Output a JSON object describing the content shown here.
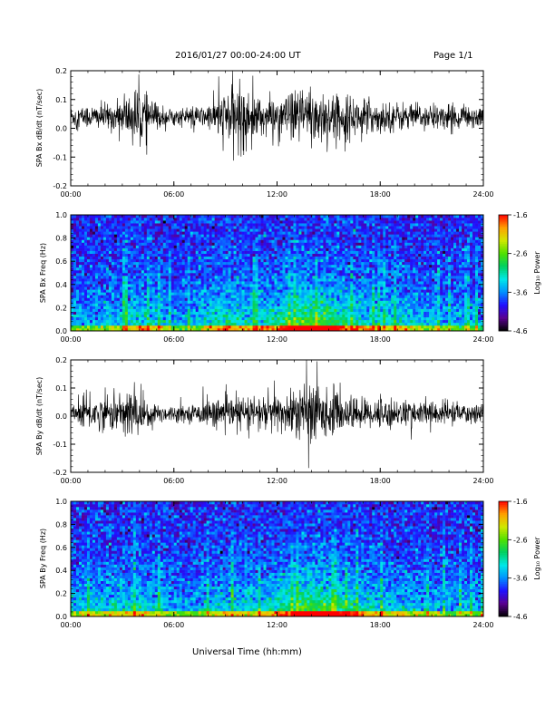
{
  "header": {
    "date_range": "2016/01/27  00:00-24:00 UT",
    "page": "Page 1/1"
  },
  "xlabel": "Universal Time (hh:mm)",
  "x_ticks": [
    "00:00",
    "06:00",
    "12:00",
    "18:00",
    "24:00"
  ],
  "colorbar": {
    "label": "Log₁₀ Power",
    "ticks": [
      "-1.6",
      "-2.6",
      "-3.6",
      "-4.6"
    ],
    "range": [
      -4.6,
      -1.6
    ],
    "colormap": [
      "#000000",
      "#5a0090",
      "#2010ff",
      "#0090ff",
      "#00e8e8",
      "#00d060",
      "#50e000",
      "#d0e800",
      "#ffa000",
      "#ff0000"
    ]
  },
  "chart_data": [
    {
      "type": "line",
      "title": "",
      "ylabel": "SPA Bx dB/dt (nT/sec)",
      "xlabel": "",
      "xlim": [
        0,
        24
      ],
      "ylim": [
        -0.2,
        0.2
      ],
      "y_ticks": [
        "0.2",
        "0.1",
        "0.0",
        "-0.1",
        "-0.2"
      ],
      "color": "#000000",
      "series": [
        {
          "x": [
            0,
            1,
            2,
            3,
            3.5,
            4,
            4.5,
            5,
            6,
            7,
            8,
            9,
            9.5,
            10,
            10.5,
            11,
            12,
            13,
            13.5,
            14,
            14.5,
            15,
            16,
            17,
            18,
            19,
            20,
            21,
            22,
            23,
            24
          ],
          "baseline": [
            0.04,
            0.04,
            0.04,
            0.04,
            0.04,
            0.04,
            0.04,
            0.04,
            0.04,
            0.04,
            0.04,
            0.04,
            0.04,
            0.04,
            0.04,
            0.04,
            0.04,
            0.04,
            0.04,
            0.04,
            0.04,
            0.04,
            0.04,
            0.04,
            0.04,
            0.04,
            0.04,
            0.04,
            0.04,
            0.04,
            0.04
          ],
          "amplitude": [
            0.04,
            0.045,
            0.05,
            0.06,
            0.1,
            0.11,
            0.08,
            0.05,
            0.03,
            0.035,
            0.045,
            0.1,
            0.13,
            0.12,
            0.09,
            0.08,
            0.07,
            0.09,
            0.11,
            0.14,
            0.12,
            0.09,
            0.08,
            0.07,
            0.06,
            0.055,
            0.05,
            0.05,
            0.045,
            0.045,
            0.04
          ]
        }
      ]
    },
    {
      "type": "heatmap",
      "title": "",
      "ylabel": "SPA Bx Freq (Hz)",
      "xlabel": "",
      "xlim": [
        0,
        24
      ],
      "ylim": [
        0,
        1.0
      ],
      "y_ticks": [
        "1.0",
        "0.8",
        "0.6",
        "0.4",
        "0.2",
        "0.0"
      ],
      "value_range": [
        -4.6,
        -1.6
      ],
      "activity": {
        "x": [
          0,
          1,
          2,
          3,
          4,
          5,
          6,
          7,
          8,
          9,
          10,
          11,
          12,
          13,
          14,
          15,
          16,
          17,
          18,
          19,
          20,
          21,
          22,
          23,
          24
        ],
        "level": [
          0.35,
          0.35,
          0.4,
          0.45,
          0.6,
          0.5,
          0.3,
          0.35,
          0.55,
          0.7,
          0.55,
          0.55,
          0.7,
          0.85,
          1.0,
          0.85,
          0.7,
          0.6,
          0.5,
          0.55,
          0.45,
          0.4,
          0.35,
          0.3,
          0.3
        ]
      }
    },
    {
      "type": "line",
      "title": "",
      "ylabel": "SPA By dB/dt (nT/sec)",
      "xlabel": "",
      "xlim": [
        0,
        24
      ],
      "ylim": [
        -0.2,
        0.2
      ],
      "y_ticks": [
        "0.2",
        "0.1",
        "0.0",
        "-0.1",
        "-0.2"
      ],
      "color": "#000000",
      "series": [
        {
          "x": [
            0,
            1,
            2,
            3,
            3.5,
            4,
            4.5,
            5,
            6,
            7,
            8,
            9,
            9.5,
            10,
            10.5,
            11,
            12,
            13,
            13.5,
            14,
            14.5,
            15,
            16,
            17,
            18,
            19,
            20,
            21,
            22,
            23,
            24
          ],
          "baseline": [
            0.01,
            0.01,
            0.01,
            0.01,
            0.01,
            0.01,
            0.01,
            0.01,
            0.01,
            0.01,
            0.01,
            0.01,
            0.01,
            0.01,
            0.01,
            0.01,
            0.01,
            0.01,
            0.01,
            0.01,
            0.01,
            0.01,
            0.01,
            0.01,
            0.01,
            0.01,
            0.01,
            0.01,
            0.01,
            0.01,
            0.01
          ],
          "amplitude": [
            0.05,
            0.07,
            0.06,
            0.08,
            0.1,
            0.09,
            0.06,
            0.04,
            0.03,
            0.03,
            0.05,
            0.06,
            0.06,
            0.07,
            0.06,
            0.07,
            0.08,
            0.09,
            0.12,
            0.13,
            0.11,
            0.08,
            0.07,
            0.06,
            0.06,
            0.05,
            0.05,
            0.05,
            0.045,
            0.04,
            0.04
          ]
        }
      ]
    },
    {
      "type": "heatmap",
      "title": "",
      "ylabel": "SPA By Freq (Hz)",
      "xlabel": "",
      "xlim": [
        0,
        24
      ],
      "ylim": [
        0,
        1.0
      ],
      "y_ticks": [
        "1.0",
        "0.8",
        "0.6",
        "0.4",
        "0.2",
        "0.0"
      ],
      "value_range": [
        -4.6,
        -1.6
      ],
      "activity": {
        "x": [
          0,
          1,
          2,
          3,
          4,
          5,
          6,
          7,
          8,
          9,
          10,
          11,
          12,
          13,
          14,
          15,
          16,
          17,
          18,
          19,
          20,
          21,
          22,
          23,
          24
        ],
        "level": [
          0.45,
          0.45,
          0.5,
          0.5,
          0.55,
          0.45,
          0.35,
          0.35,
          0.45,
          0.55,
          0.5,
          0.5,
          0.65,
          0.8,
          0.95,
          0.85,
          0.7,
          0.6,
          0.5,
          0.5,
          0.45,
          0.4,
          0.35,
          0.35,
          0.3
        ]
      }
    }
  ]
}
